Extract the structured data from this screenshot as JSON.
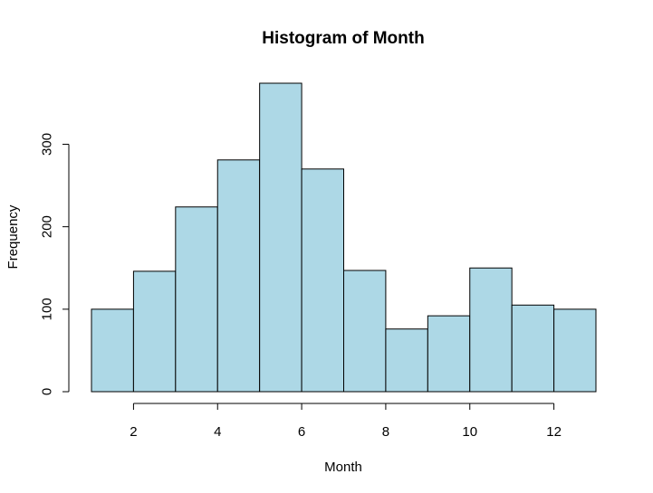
{
  "chart_data": {
    "type": "bar",
    "subtype": "histogram",
    "title": "Histogram of Month",
    "xlabel": "Month",
    "ylabel": "Frequency",
    "bins": [
      {
        "from": 1,
        "to": 2,
        "value": 100
      },
      {
        "from": 2,
        "to": 3,
        "value": 146
      },
      {
        "from": 3,
        "to": 4,
        "value": 224
      },
      {
        "from": 4,
        "to": 5,
        "value": 281
      },
      {
        "from": 5,
        "to": 6,
        "value": 374
      },
      {
        "from": 6,
        "to": 7,
        "value": 270
      },
      {
        "from": 7,
        "to": 8,
        "value": 147
      },
      {
        "from": 8,
        "to": 9,
        "value": 76
      },
      {
        "from": 9,
        "to": 10,
        "value": 92
      },
      {
        "from": 10,
        "to": 11,
        "value": 150
      },
      {
        "from": 11,
        "to": 12,
        "value": 105
      },
      {
        "from": 12,
        "to": 13,
        "value": 100
      }
    ],
    "xlim": [
      1,
      13
    ],
    "ylim": [
      0,
      374
    ],
    "x_ticks": [
      2,
      4,
      6,
      8,
      10,
      12
    ],
    "y_ticks": [
      0,
      100,
      200,
      300
    ],
    "bar_color": "#add8e6",
    "grid": false
  }
}
